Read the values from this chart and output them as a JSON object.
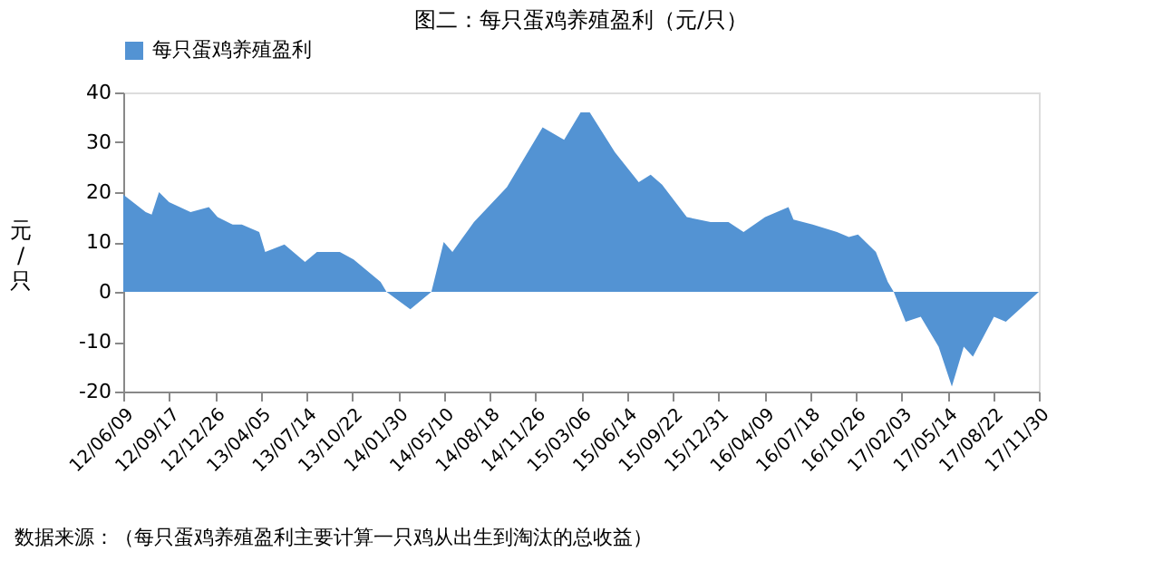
{
  "chart_data": {
    "type": "area",
    "title": "图二：每只蛋鸡养殖盈利（元/只）",
    "ylabel": "元/只",
    "annotations": [
      "数据来源：（每只蛋鸡养殖盈利主要计算一只鸡从出生到淘汰的总收益）"
    ],
    "x": [
      "2012-06-09",
      "2012-07-28",
      "2012-08-10",
      "2012-08-26",
      "2012-09-17",
      "2012-11-03",
      "2012-12-13",
      "2013-01-01",
      "2013-02-03",
      "2013-02-23",
      "2013-04-02",
      "2013-04-15",
      "2013-05-27",
      "2013-07-11",
      "2013-08-06",
      "2013-09-25",
      "2013-10-25",
      "2013-12-23",
      "2014-01-05",
      "2014-02-26",
      "2014-04-13",
      "2014-05-10",
      "2014-05-29",
      "2014-07-15",
      "2014-09-25",
      "2014-11-03",
      "2014-12-12",
      "2015-01-28",
      "2015-03-05",
      "2015-03-25",
      "2015-05-19",
      "2015-07-10",
      "2015-08-05",
      "2015-08-30",
      "2015-10-23",
      "2015-12-14",
      "2016-01-22",
      "2016-02-24",
      "2016-04-11",
      "2016-06-01",
      "2016-06-12",
      "2016-07-24",
      "2016-09-15",
      "2016-10-11",
      "2016-10-31",
      "2016-12-09",
      "2017-01-04",
      "2017-01-17",
      "2017-02-12",
      "2017-03-17",
      "2017-04-25",
      "2017-05-24",
      "2017-06-19",
      "2017-07-09",
      "2017-08-24",
      "2017-09-19",
      "2017-11-30"
    ],
    "series": [
      {
        "name": "每只蛋鸡养殖盈利",
        "color": "#5393d3",
        "values": [
          19.5,
          16,
          15.5,
          20,
          18,
          16,
          17,
          15,
          13.5,
          13.5,
          12,
          8,
          9.5,
          6,
          8,
          8,
          6.5,
          2,
          0,
          -3.5,
          0,
          10,
          8,
          14,
          21,
          27,
          33,
          30.5,
          36,
          36,
          28,
          22,
          23.5,
          21.5,
          15,
          14,
          14,
          12,
          15,
          17,
          14.5,
          13.5,
          12,
          11,
          11.5,
          8,
          2,
          0,
          -6,
          -5,
          -11,
          -19,
          -11,
          -13,
          -5,
          -6,
          0
        ]
      }
    ],
    "xlim": [
      "2012-06-09",
      "2017-11-30"
    ],
    "xticks": [
      {
        "value": "2012-06-09",
        "label": "12/06/09"
      },
      {
        "value": "2012-09-17",
        "label": "12/09/17"
      },
      {
        "value": "2012-12-26",
        "label": "12/12/26"
      },
      {
        "value": "2013-04-05",
        "label": "13/04/05"
      },
      {
        "value": "2013-07-14",
        "label": "13/07/14"
      },
      {
        "value": "2013-10-22",
        "label": "13/10/22"
      },
      {
        "value": "2014-01-30",
        "label": "14/01/30"
      },
      {
        "value": "2014-05-10",
        "label": "14/05/10"
      },
      {
        "value": "2014-08-18",
        "label": "14/08/18"
      },
      {
        "value": "2014-11-26",
        "label": "14/11/26"
      },
      {
        "value": "2015-03-06",
        "label": "15/03/06"
      },
      {
        "value": "2015-06-14",
        "label": "15/06/14"
      },
      {
        "value": "2015-09-22",
        "label": "15/09/22"
      },
      {
        "value": "2015-12-31",
        "label": "15/12/31"
      },
      {
        "value": "2016-04-09",
        "label": "16/04/09"
      },
      {
        "value": "2016-07-18",
        "label": "16/07/18"
      },
      {
        "value": "2016-10-26",
        "label": "16/10/26"
      },
      {
        "value": "2017-02-03",
        "label": "17/02/03"
      },
      {
        "value": "2017-05-14",
        "label": "17/05/14"
      },
      {
        "value": "2017-08-22",
        "label": "17/08/22"
      },
      {
        "value": "2017-11-30",
        "label": "17/11/30"
      }
    ],
    "ylim": [
      -20,
      40
    ],
    "yticks": [
      -20,
      -10,
      0,
      10,
      20,
      30,
      40
    ],
    "grid": false,
    "legend": "top"
  }
}
